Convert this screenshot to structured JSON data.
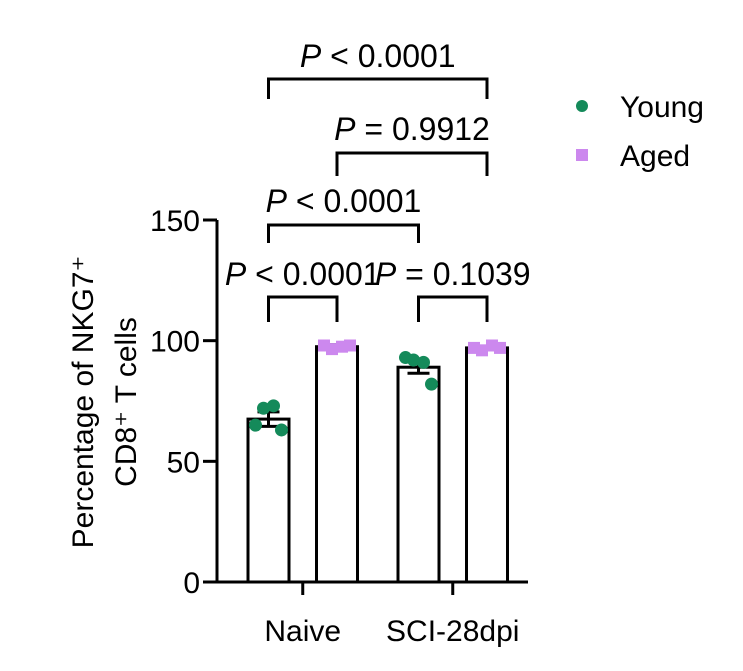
{
  "chart_data": {
    "type": "bar",
    "ylabel_line1": "Percentage of NKG7⁺",
    "ylabel_line2": "CD8⁺ T cells",
    "ylim": [
      0,
      150
    ],
    "yticks": [
      "0",
      "50",
      "100",
      "150"
    ],
    "categories": [
      "Naive",
      "SCI-28dpi"
    ],
    "series": [
      {
        "name": "Young",
        "color": "#148a5a",
        "marker": "circle",
        "values": [
          67.5,
          89
        ],
        "sem": [
          3.0,
          2.5
        ],
        "points": [
          [
            65,
            72,
            73,
            63
          ],
          [
            93,
            92,
            91,
            82
          ]
        ]
      },
      {
        "name": "Aged",
        "color": "#cc88ee",
        "marker": "square",
        "values": [
          97.5,
          97
        ],
        "sem": [
          0.8,
          0.7
        ],
        "points": [
          [
            98,
            96.5,
            97.5,
            98
          ],
          [
            97,
            96,
            98,
            97
          ]
        ]
      }
    ],
    "comparisons": [
      {
        "italic": "P",
        "rest": " < 0.0001",
        "between": [
          "Naive Young",
          "Naive Aged"
        ]
      },
      {
        "italic": "P",
        "rest": " = 0.1039",
        "between": [
          "SCI-28dpi Young",
          "SCI-28dpi Aged"
        ]
      },
      {
        "italic": "P",
        "rest": " < 0.0001",
        "between": [
          "Naive Young",
          "SCI-28dpi Young"
        ]
      },
      {
        "italic": "P",
        "rest": " = 0.9912",
        "between": [
          "Naive Aged",
          "SCI-28dpi Aged"
        ]
      },
      {
        "italic": "P",
        "rest": " < 0.0001",
        "between": [
          "Naive Young",
          "SCI-28dpi Aged"
        ]
      }
    ],
    "legend": {
      "position": "top-right"
    }
  }
}
